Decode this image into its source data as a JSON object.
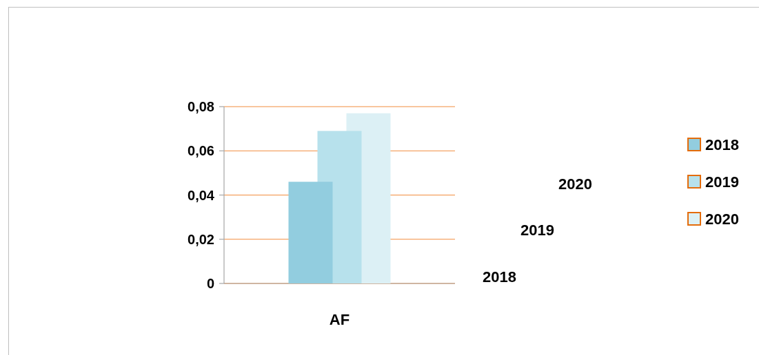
{
  "chart_data": {
    "type": "bar",
    "categories": [
      "AF"
    ],
    "series": [
      {
        "name": "2018",
        "color": "#92cddf",
        "values": [
          0.046
        ]
      },
      {
        "name": "2019",
        "color": "#b7e1ec",
        "values": [
          0.069
        ]
      },
      {
        "name": "2020",
        "color": "#dcf0f5",
        "values": [
          0.077
        ]
      }
    ],
    "ylim": [
      0,
      0.08
    ],
    "yticks": [
      0,
      {
        "value": 0.02,
        "label": "0,02"
      },
      {
        "value": 0.04,
        "label": "0,04"
      },
      {
        "value": 0.06,
        "label": "0,06"
      },
      {
        "value": 0.08,
        "label": "0,08"
      }
    ],
    "grid": "y",
    "legend": "right"
  }
}
